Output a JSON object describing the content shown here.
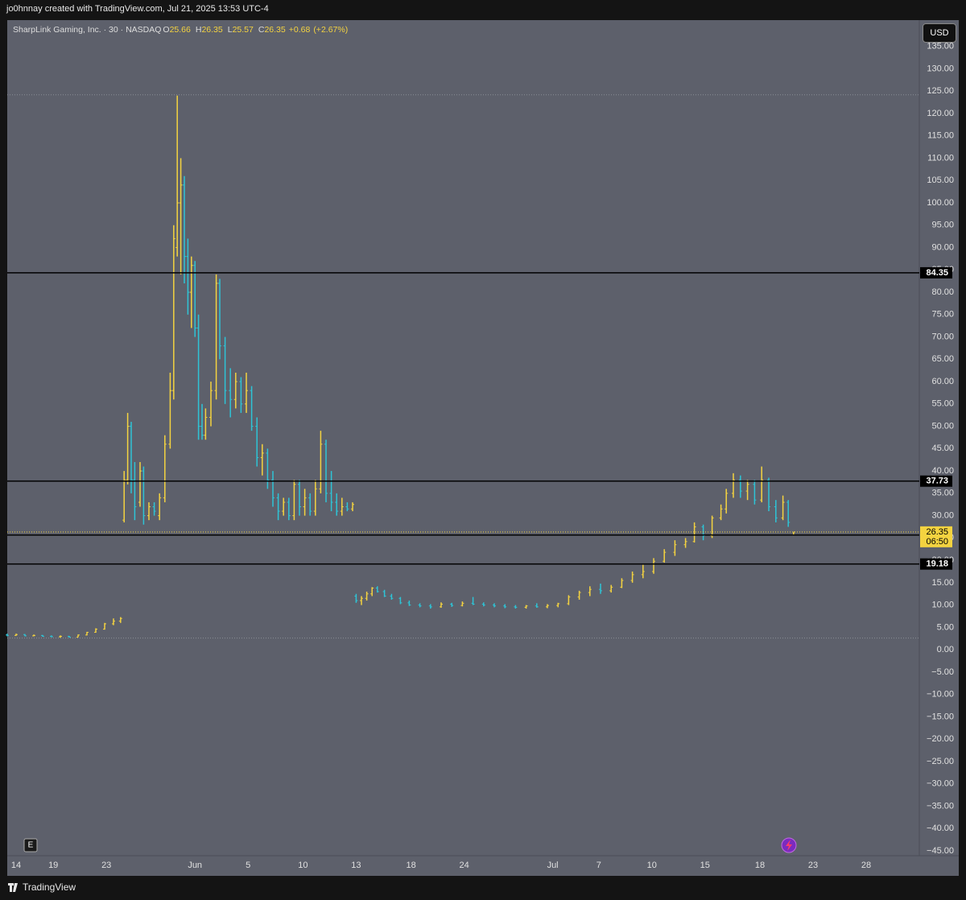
{
  "header": {
    "attribution": "jo0hnnay created with TradingView.com, Jul 21, 2025 13:53 UTC-4"
  },
  "chart_data": {
    "type": "ohlc",
    "title": "SharpLink Gaming, Inc. · 30 · NASDAQ",
    "legend": {
      "o_letter": "O",
      "open": 25.66,
      "h_letter": "H",
      "high": 26.35,
      "l_letter": "L",
      "low": 25.57,
      "c_letter": "C",
      "close": 26.35,
      "change": {
        "value": 0.68,
        "label": "+0.68"
      },
      "change_pct": {
        "value": 2.67,
        "label": "(+2.67%)"
      }
    },
    "currency": "USD",
    "event_marker": "E",
    "up_color": "#f4d340",
    "down_color": "#2ec4d6",
    "x": [
      0,
      0.5,
      1,
      1.5,
      2,
      2.5,
      3,
      3.5,
      4,
      4.5,
      5,
      5.5,
      6,
      6.4,
      6.6,
      6.8,
      7,
      7.2,
      7.5,
      7.7,
      8,
      8.3,
      8.6,
      8.9,
      9.2,
      9.4,
      9.6,
      9.8,
      10,
      10.2,
      10.4,
      10.6,
      10.8,
      11,
      11.2,
      11.5,
      11.8,
      12,
      12.3,
      12.6,
      12.9,
      13.2,
      13.5,
      13.8,
      14.1,
      14.4,
      14.7,
      15,
      15.3,
      15.6,
      15.9,
      16.2,
      16.5,
      16.8,
      17.1,
      17.4,
      17.7,
      18,
      18.3,
      18.6,
      18.9,
      19.2,
      19.5,
      19.7,
      20,
      20.3,
      20.6,
      20.9,
      21.3,
      21.7,
      22.2,
      22.7,
      23.3,
      23.9,
      24.5,
      25.1,
      25.7,
      26.3,
      26.9,
      27.5,
      28.1,
      28.7,
      29.3,
      29.9,
      30.5,
      31.1,
      31.7,
      32.3,
      32.9,
      33.5,
      34.1,
      34.7,
      35.3,
      35.9,
      36.5,
      37.1,
      37.7,
      38.3,
      38.8,
      39.3,
      39.8,
      40.3,
      40.6,
      41,
      41.4,
      41.8,
      42.2,
      42.6,
      43,
      43.4,
      43.8,
      44.1,
      44.4
    ],
    "open": [
      3.3,
      3.2,
      3.4,
      3.1,
      3.2,
      3.0,
      2.9,
      3.0,
      2.8,
      3.3,
      3.9,
      4.6,
      5.8,
      6.4,
      29,
      38,
      50,
      38,
      33,
      40,
      30,
      32,
      30,
      34,
      46,
      58,
      90,
      100,
      104,
      88,
      80,
      86,
      72,
      50,
      48,
      52,
      58,
      82,
      68,
      58,
      56,
      60,
      55,
      58,
      50,
      43,
      44,
      38,
      34,
      31,
      33,
      30,
      37,
      32,
      34,
      31,
      36,
      46,
      35,
      33,
      31,
      32,
      31.5,
      12,
      11,
      11.5,
      12.5,
      13.8,
      13,
      12,
      11.5,
      10.5,
      10,
      9.8,
      9.6,
      10.2,
      9.9,
      10.4,
      10.2,
      10,
      9.8,
      9.6,
      9.5,
      9.8,
      9.6,
      9.9,
      10.3,
      11.8,
      12.8,
      13.5,
      13.2,
      14,
      15.5,
      16.8,
      17.5,
      19.8,
      21.8,
      23.5,
      24.2,
      27.5,
      25.5,
      29.5,
      31.5,
      35,
      38,
      35.5,
      37,
      33.5,
      38,
      32,
      29.5,
      33,
      25.66
    ],
    "high": [
      3.6,
      3.6,
      3.5,
      3.4,
      3.3,
      3.2,
      3.2,
      3.1,
      3.4,
      4.0,
      4.8,
      6.0,
      7.0,
      7.3,
      40,
      53,
      51,
      42,
      42,
      41,
      33,
      33,
      35,
      48,
      62,
      95,
      124,
      110,
      106,
      92,
      88,
      87,
      75,
      55,
      54,
      60,
      84,
      83,
      70,
      63,
      62,
      61,
      62,
      59,
      52,
      46,
      45,
      40,
      35,
      34,
      34,
      38,
      38,
      36,
      35,
      38,
      49,
      47,
      40,
      35,
      34,
      33,
      33,
      12.5,
      12,
      13,
      14,
      14.2,
      13.4,
      12.5,
      11.8,
      11,
      10.4,
      10.2,
      10.6,
      10.5,
      10.8,
      11.8,
      10.6,
      10.4,
      10.2,
      10,
      10,
      10.4,
      10.2,
      10.5,
      12.2,
      13.2,
      14.2,
      14.8,
      14.5,
      16,
      17.5,
      19,
      20.5,
      22.5,
      24.5,
      25,
      28.5,
      28,
      30,
      32.5,
      36,
      39.5,
      39,
      38,
      38,
      41,
      38.5,
      33.5,
      34.5,
      33.5,
      26.35
    ],
    "low": [
      3.0,
      3.1,
      3.0,
      3.0,
      2.9,
      2.8,
      2.7,
      2.7,
      2.8,
      3.2,
      3.8,
      4.5,
      5.5,
      6.0,
      28.5,
      37,
      35,
      29,
      32,
      28,
      29,
      30,
      29,
      33,
      45,
      56,
      88,
      84,
      82,
      75,
      72,
      70,
      47,
      47,
      47,
      50,
      56,
      65,
      55,
      52,
      54,
      53,
      53,
      49,
      41,
      39,
      36,
      32,
      29,
      30,
      29,
      29,
      30,
      30,
      30,
      30,
      35,
      33,
      31,
      30,
      30,
      31,
      31,
      10.5,
      10,
      11,
      12,
      12.8,
      11.8,
      11.2,
      10.2,
      9.8,
      9.5,
      9.2,
      9.4,
      9.6,
      9.7,
      10,
      9.7,
      9.5,
      9.3,
      9.2,
      9.2,
      9.4,
      9.3,
      9.5,
      10,
      11.2,
      12,
      12.5,
      12.8,
      13.8,
      15,
      16,
      17,
      19.5,
      21,
      22.8,
      24,
      24.5,
      25,
      29,
      30.5,
      34,
      34,
      33.5,
      32.5,
      33,
      31,
      28.5,
      29,
      27.5,
      25.57
    ],
    "close": [
      3.2,
      3.4,
      3.1,
      3.2,
      3.0,
      2.9,
      3.0,
      2.8,
      3.3,
      3.9,
      4.6,
      5.8,
      6.4,
      7.0,
      38,
      50,
      38,
      32,
      40,
      30,
      32,
      31,
      34,
      46,
      58,
      92,
      100,
      104,
      88,
      80,
      86,
      72,
      50,
      48,
      52,
      58,
      82,
      68,
      58,
      56,
      60,
      55,
      58,
      50,
      43,
      44,
      38,
      34,
      31,
      33,
      30,
      37,
      32,
      34,
      31,
      36,
      46,
      35,
      33,
      31,
      32,
      31.5,
      32.5,
      11,
      11.5,
      12.5,
      13.8,
      13,
      12,
      11.5,
      10.5,
      10,
      9.8,
      9.6,
      10.2,
      9.9,
      10.4,
      10.2,
      10,
      9.8,
      9.6,
      9.5,
      9.8,
      9.6,
      9.9,
      10.3,
      11.8,
      12.8,
      13.5,
      13.2,
      14,
      15.5,
      16.8,
      17.5,
      19.8,
      21.8,
      23.5,
      24.2,
      27.5,
      25.5,
      29.5,
      31.5,
      35,
      38,
      35.5,
      37,
      33.5,
      38,
      32,
      29.5,
      33,
      28.5,
      26.35
    ],
    "extreme_levels": [
      124.2,
      2.6
    ],
    "levels": [
      84.35,
      37.73,
      19.18,
      25.67
    ],
    "last_price": 26.35,
    "countdown": "06:50",
    "xlim": [
      0,
      51.5
    ],
    "ylim": [
      -46.1,
      140.9
    ],
    "xticks": [
      {
        "value": 0.5,
        "label": "14"
      },
      {
        "value": 2.6,
        "label": "19"
      },
      {
        "value": 5.6,
        "label": "23"
      },
      {
        "value": 10.6,
        "label": "Jun"
      },
      {
        "value": 13.6,
        "label": "5"
      },
      {
        "value": 16.7,
        "label": "10"
      },
      {
        "value": 19.7,
        "label": "13"
      },
      {
        "value": 22.8,
        "label": "18"
      },
      {
        "value": 25.8,
        "label": "24"
      },
      {
        "value": 30.8,
        "label": "Jul"
      },
      {
        "value": 33.4,
        "label": "7"
      },
      {
        "value": 36.4,
        "label": "10"
      },
      {
        "value": 39.4,
        "label": "15"
      },
      {
        "value": 42.5,
        "label": "18"
      },
      {
        "value": 45.5,
        "label": "23"
      },
      {
        "value": 48.5,
        "label": "28"
      }
    ],
    "yticks": [
      {
        "value": 135,
        "label": "135.00"
      },
      {
        "value": 130,
        "label": "130.00"
      },
      {
        "value": 125,
        "label": "125.00"
      },
      {
        "value": 120,
        "label": "120.00"
      },
      {
        "value": 115,
        "label": "115.00"
      },
      {
        "value": 110,
        "label": "110.00"
      },
      {
        "value": 105,
        "label": "105.00"
      },
      {
        "value": 100,
        "label": "100.00"
      },
      {
        "value": 95,
        "label": "95.00"
      },
      {
        "value": 90,
        "label": "90.00"
      },
      {
        "value": 85,
        "label": "85.00"
      },
      {
        "value": 80,
        "label": "80.00"
      },
      {
        "value": 75,
        "label": "75.00"
      },
      {
        "value": 70,
        "label": "70.00"
      },
      {
        "value": 65,
        "label": "65.00"
      },
      {
        "value": 60,
        "label": "60.00"
      },
      {
        "value": 55,
        "label": "55.00"
      },
      {
        "value": 50,
        "label": "50.00"
      },
      {
        "value": 45,
        "label": "45.00"
      },
      {
        "value": 40,
        "label": "40.00"
      },
      {
        "value": 35,
        "label": "35.00"
      },
      {
        "value": 30,
        "label": "30.00"
      },
      {
        "value": 25,
        "label": "25.00"
      },
      {
        "value": 20,
        "label": "20.00"
      },
      {
        "value": 15,
        "label": "15.00"
      },
      {
        "value": 10,
        "label": "10.00"
      },
      {
        "value": 5,
        "label": "5.00"
      },
      {
        "value": 0,
        "label": "0.00"
      },
      {
        "value": -5,
        "label": "−5.00"
      },
      {
        "value": -10,
        "label": "−10.00"
      },
      {
        "value": -15,
        "label": "−15.00"
      },
      {
        "value": -20,
        "label": "−20.00"
      },
      {
        "value": -25,
        "label": "−25.00"
      },
      {
        "value": -30,
        "label": "−30.00"
      },
      {
        "value": -35,
        "label": "−35.00"
      },
      {
        "value": -40,
        "label": "−40.00"
      },
      {
        "value": -45,
        "label": "−45.00"
      }
    ]
  },
  "footer": {
    "brand": "TradingView"
  }
}
